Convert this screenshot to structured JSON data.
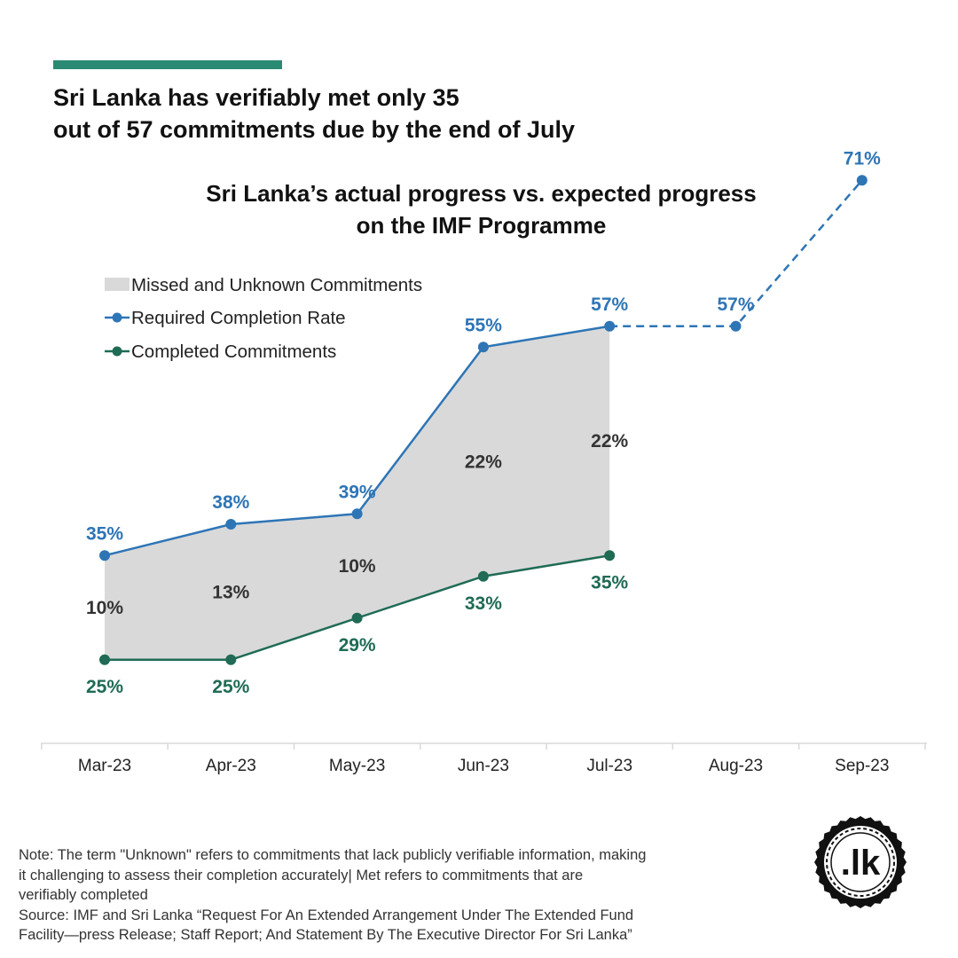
{
  "header": {
    "accent_color": "#2a8a73",
    "headline_line1": "Sri Lanka has verifiably met only 35",
    "headline_line2": "out of 57 commitments due by the end of July"
  },
  "chart_title": {
    "line1": "Sri Lanka’s actual progress vs. expected progress",
    "line2": "on the IMF Programme"
  },
  "legend": {
    "missed": "Missed and Unknown Commitments",
    "required": "Required Completion Rate",
    "completed": "Completed Commitments"
  },
  "chart_data": {
    "type": "line",
    "categories": [
      "Mar-23",
      "Apr-23",
      "May-23",
      "Jun-23",
      "Jul-23",
      "Aug-23",
      "Sep-23"
    ],
    "series": [
      {
        "name": "Required Completion Rate",
        "color": "#2e75b6",
        "values": [
          35,
          38,
          39,
          55,
          57,
          57,
          71
        ],
        "labels": [
          "35%",
          "38%",
          "39%",
          "55%",
          "57%",
          "57%",
          "71%"
        ],
        "line_style": "solid through Jul-23, dashed Jul-23 to Sep-23"
      },
      {
        "name": "Completed Commitments",
        "color": "#1f6b55",
        "values": [
          25,
          25,
          29,
          33,
          35,
          null,
          null
        ],
        "labels": [
          "25%",
          "25%",
          "29%",
          "33%",
          "35%",
          null,
          null
        ]
      }
    ],
    "gap_area": {
      "name": "Missed and Unknown Commitments",
      "color": "#d9d9d9",
      "values": [
        10,
        13,
        10,
        22,
        22
      ],
      "labels": [
        "10%",
        "13%",
        "10%",
        "22%",
        "22%"
      ]
    },
    "ylim": [
      0,
      80
    ],
    "grid": false,
    "legend_position": "top-left"
  },
  "footer": {
    "note_line1": "Note: The term \"Unknown\" refers to commitments that lack publicly verifiable information, making",
    "note_line2": "it challenging to assess their completion accurately| Met refers to commitments that are",
    "note_line3": "verifiably completed",
    "source_line1": "Source: IMF and Sri Lanka “Request For An Extended Arrangement Under The Extended Fund",
    "source_line2": "Facility—press Release; Staff Report; And Statement By The Executive Director For Sri Lanka”"
  },
  "logo": {
    "text": ".lk"
  }
}
